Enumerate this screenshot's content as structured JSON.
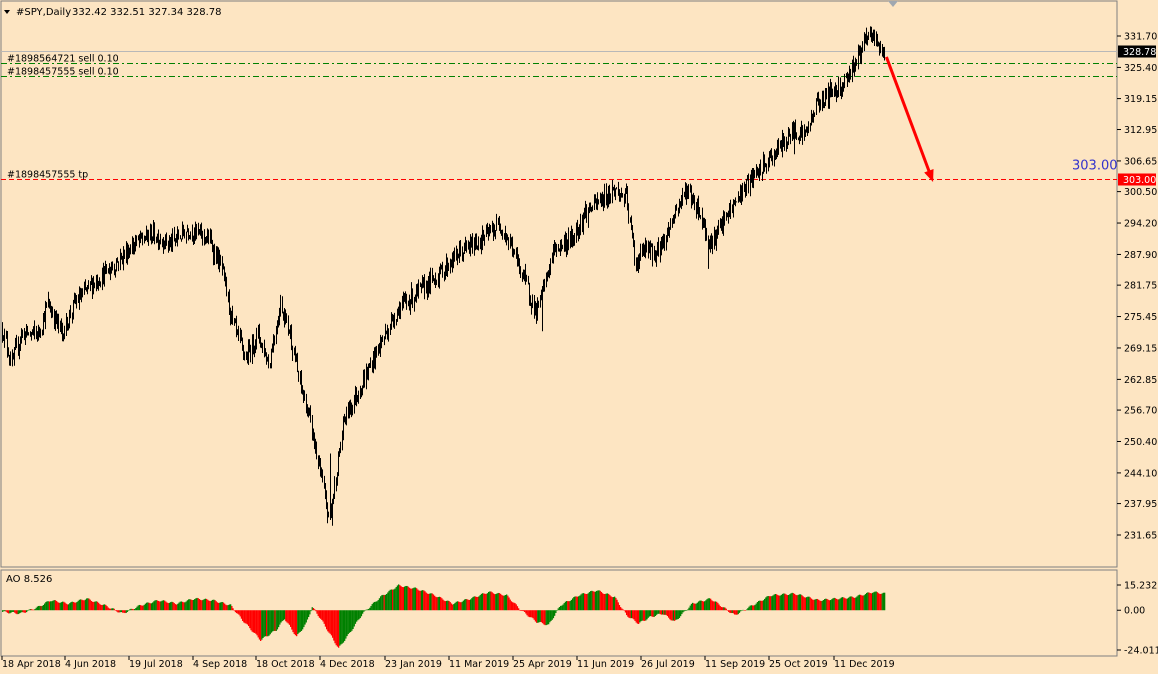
{
  "chart_data": [
    {
      "type": "ohlc",
      "title": "#SPY,Daily",
      "ohlc_readout": "332.42 332.51 327.34 328.78",
      "ylim": [
        231.62,
        335.0
      ],
      "y_ticks": [
        "331.70",
        "325.40",
        "319.15",
        "312.95",
        "306.65",
        "300.50",
        "294.20",
        "287.90",
        "281.75",
        "275.45",
        "269.15",
        "262.85",
        "256.70",
        "250.40",
        "244.10",
        "237.95",
        "231.65"
      ],
      "x_ticks": [
        "18 Apr 2018",
        "4 Jun 2018",
        "19 Jul 2018",
        "4 Sep 2018",
        "18 Oct 2018",
        "4 Dec 2018",
        "23 Jan 2019",
        "11 Mar 2019",
        "25 Apr 2019",
        "11 Jun 2019",
        "26 Jul 2019",
        "11 Sep 2019",
        "25 Oct 2019",
        "11 Dec 2019"
      ],
      "last_price": "328.78",
      "anchors": [
        {
          "i": 0,
          "p": 273
        },
        {
          "i": 8,
          "p": 266
        },
        {
          "i": 16,
          "p": 272
        },
        {
          "i": 30,
          "p": 272
        },
        {
          "i": 38,
          "p": 278
        },
        {
          "i": 50,
          "p": 272
        },
        {
          "i": 60,
          "p": 278
        },
        {
          "i": 75,
          "p": 282
        },
        {
          "i": 90,
          "p": 285
        },
        {
          "i": 110,
          "p": 290
        },
        {
          "i": 125,
          "p": 292
        },
        {
          "i": 140,
          "p": 290
        },
        {
          "i": 155,
          "p": 293
        },
        {
          "i": 172,
          "p": 291
        },
        {
          "i": 183,
          "p": 285
        },
        {
          "i": 192,
          "p": 274
        },
        {
          "i": 203,
          "p": 267
        },
        {
          "i": 213,
          "p": 272
        },
        {
          "i": 222,
          "p": 266
        },
        {
          "i": 232,
          "p": 278
        },
        {
          "i": 240,
          "p": 272
        },
        {
          "i": 247,
          "p": 263
        },
        {
          "i": 256,
          "p": 255
        },
        {
          "i": 265,
          "p": 244
        },
        {
          "i": 272,
          "p": 235
        },
        {
          "i": 276,
          "p": 240
        },
        {
          "i": 285,
          "p": 255
        },
        {
          "i": 300,
          "p": 262
        },
        {
          "i": 315,
          "p": 270
        },
        {
          "i": 330,
          "p": 277
        },
        {
          "i": 345,
          "p": 280
        },
        {
          "i": 360,
          "p": 283
        },
        {
          "i": 380,
          "p": 288
        },
        {
          "i": 400,
          "p": 291
        },
        {
          "i": 415,
          "p": 294
        },
        {
          "i": 425,
          "p": 289
        },
        {
          "i": 435,
          "p": 283
        },
        {
          "i": 445,
          "p": 276
        },
        {
          "i": 452,
          "p": 282
        },
        {
          "i": 460,
          "p": 289
        },
        {
          "i": 475,
          "p": 291
        },
        {
          "i": 485,
          "p": 296
        },
        {
          "i": 500,
          "p": 299
        },
        {
          "i": 510,
          "p": 301
        },
        {
          "i": 520,
          "p": 299
        },
        {
          "i": 528,
          "p": 286
        },
        {
          "i": 535,
          "p": 289
        },
        {
          "i": 545,
          "p": 288
        },
        {
          "i": 552,
          "p": 291
        },
        {
          "i": 560,
          "p": 296
        },
        {
          "i": 570,
          "p": 301
        },
        {
          "i": 580,
          "p": 297
        },
        {
          "i": 590,
          "p": 290
        },
        {
          "i": 598,
          "p": 293
        },
        {
          "i": 605,
          "p": 296
        },
        {
          "i": 615,
          "p": 300
        },
        {
          "i": 625,
          "p": 303
        },
        {
          "i": 640,
          "p": 307
        },
        {
          "i": 650,
          "p": 310
        },
        {
          "i": 660,
          "p": 313
        },
        {
          "i": 670,
          "p": 312
        },
        {
          "i": 678,
          "p": 318
        },
        {
          "i": 688,
          "p": 320
        },
        {
          "i": 700,
          "p": 322
        },
        {
          "i": 710,
          "p": 326
        },
        {
          "i": 718,
          "p": 330
        },
        {
          "i": 724,
          "p": 332
        },
        {
          "i": 730,
          "p": 330
        },
        {
          "i": 735,
          "p": 328
        }
      ],
      "spikes": [
        {
          "i": 275,
          "lo": 233.5
        },
        {
          "i": 273,
          "hi": 248
        },
        {
          "i": 450,
          "lo": 272.5
        },
        {
          "i": 588,
          "lo": 285
        },
        {
          "i": 660,
          "lo": 308
        }
      ]
    },
    {
      "type": "bar",
      "title": "AO 8.526",
      "y_ticks": [
        "15.232",
        "0.00",
        "-24.011"
      ],
      "ylim": [
        -24.011,
        15.232
      ],
      "colors": {
        "up": "#008000",
        "down": "#ff0000"
      },
      "anchors": [
        {
          "i": 0,
          "v": -1
        },
        {
          "i": 15,
          "v": -2
        },
        {
          "i": 30,
          "v": 2
        },
        {
          "i": 40,
          "v": 6
        },
        {
          "i": 55,
          "v": 4
        },
        {
          "i": 70,
          "v": 7
        },
        {
          "i": 85,
          "v": 3
        },
        {
          "i": 100,
          "v": -2
        },
        {
          "i": 115,
          "v": 3
        },
        {
          "i": 130,
          "v": 6
        },
        {
          "i": 145,
          "v": 4
        },
        {
          "i": 160,
          "v": 7
        },
        {
          "i": 175,
          "v": 6
        },
        {
          "i": 190,
          "v": 3
        },
        {
          "i": 200,
          "v": -6
        },
        {
          "i": 215,
          "v": -18
        },
        {
          "i": 228,
          "v": -12
        },
        {
          "i": 235,
          "v": -5
        },
        {
          "i": 245,
          "v": -16
        },
        {
          "i": 253,
          "v": -8
        },
        {
          "i": 258,
          "v": 2
        },
        {
          "i": 265,
          "v": -5
        },
        {
          "i": 280,
          "v": -23
        },
        {
          "i": 290,
          "v": -13
        },
        {
          "i": 300,
          "v": -2
        },
        {
          "i": 315,
          "v": 8
        },
        {
          "i": 330,
          "v": 15
        },
        {
          "i": 345,
          "v": 13
        },
        {
          "i": 360,
          "v": 9
        },
        {
          "i": 375,
          "v": 4
        },
        {
          "i": 390,
          "v": 7
        },
        {
          "i": 405,
          "v": 11
        },
        {
          "i": 420,
          "v": 9
        },
        {
          "i": 432,
          "v": 0
        },
        {
          "i": 445,
          "v": -7
        },
        {
          "i": 455,
          "v": -9
        },
        {
          "i": 465,
          "v": 3
        },
        {
          "i": 480,
          "v": 9
        },
        {
          "i": 495,
          "v": 12
        },
        {
          "i": 510,
          "v": 8
        },
        {
          "i": 520,
          "v": -3
        },
        {
          "i": 530,
          "v": -8
        },
        {
          "i": 540,
          "v": -4
        },
        {
          "i": 550,
          "v": -2
        },
        {
          "i": 560,
          "v": -7
        },
        {
          "i": 575,
          "v": 4
        },
        {
          "i": 590,
          "v": 7
        },
        {
          "i": 600,
          "v": 2
        },
        {
          "i": 610,
          "v": -3
        },
        {
          "i": 625,
          "v": 3
        },
        {
          "i": 640,
          "v": 9
        },
        {
          "i": 660,
          "v": 10
        },
        {
          "i": 680,
          "v": 6
        },
        {
          "i": 695,
          "v": 7
        },
        {
          "i": 710,
          "v": 8
        },
        {
          "i": 725,
          "v": 11
        },
        {
          "i": 735,
          "v": 10
        }
      ]
    }
  ],
  "horizontal_lines": [
    {
      "label": "#1898564721 sell 0.10",
      "price": 326.3,
      "color": "#008000",
      "style": "dash-dot"
    },
    {
      "label": "#1898457555 sell 0.10",
      "price": 323.6,
      "color": "#008000",
      "style": "dash-dot"
    },
    {
      "label": "#1898457555 tp",
      "price": 303.0,
      "color": "#ff0000",
      "style": "dashed"
    }
  ],
  "target": {
    "label": "303.00",
    "price_tag": "303.00",
    "price": 303.0
  },
  "arrow": {
    "from": {
      "i": 737,
      "p": 327.5
    },
    "to": {
      "i": 775,
      "p": 303.0
    },
    "color": "#ff0000"
  },
  "colors": {
    "background": "#fde5c2",
    "candle": "#000000",
    "axis_text": "#000000",
    "tp_text": "#3333cc"
  }
}
